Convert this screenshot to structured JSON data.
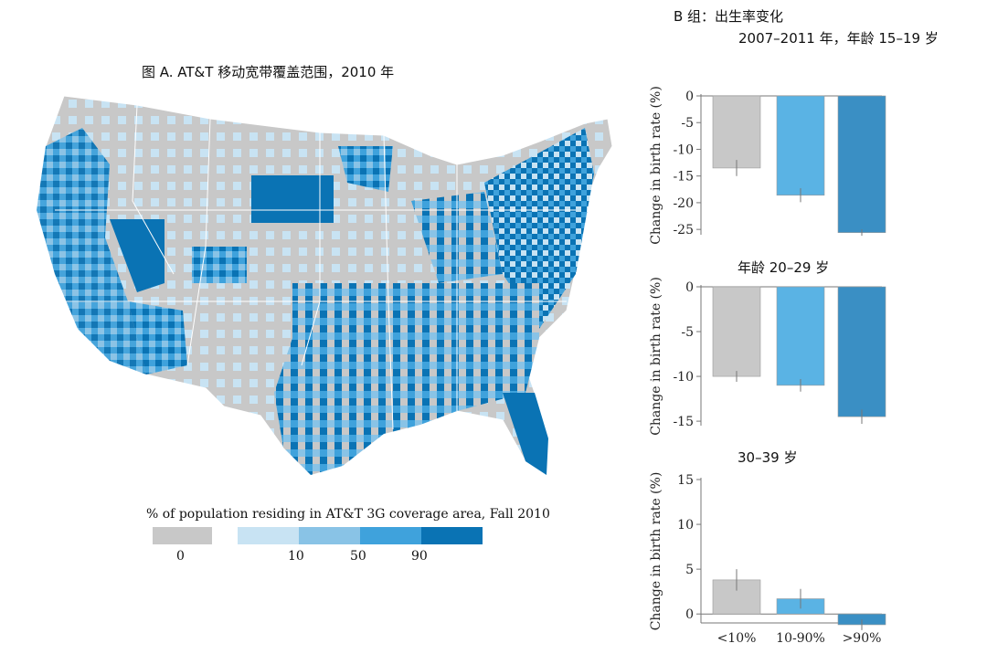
{
  "panel_a": {
    "title": "图 A. AT&T 移动宽带覆盖范围，2010 年",
    "legend_title": "% of population residing in AT&T 3G coverage area, Fall 2010",
    "legend_ticks": [
      "0",
      "10",
      "50",
      "90"
    ],
    "colors": {
      "zero": "#c8c8c8",
      "lt10": "#c8e3f3",
      "b10_50": "#89c3e6",
      "b50_90": "#3fa2dc",
      "gt90": "#0a73b4",
      "border": "#ffffff"
    }
  },
  "panel_b": {
    "title_line1": "B 组：出生率变化",
    "title_line2": "2007–2011 年，年龄 15–19 岁",
    "sub2": "年龄 20–29 岁",
    "sub3": "30–39 岁"
  },
  "chart_data": [
    {
      "type": "bar",
      "ylabel": "Change in birth rate (%)",
      "ylim": [
        -26,
        0
      ],
      "yticks": [
        0,
        -5,
        -10,
        -15,
        -20,
        -25
      ],
      "categories": [
        "<10%",
        "10-90%",
        ">90%"
      ],
      "values": [
        -13.5,
        -18.6,
        -25.6
      ],
      "errors": [
        1.5,
        1.3,
        0.6
      ],
      "colors": [
        "#c8c8c8",
        "#5ab3e4",
        "#3a8fc4"
      ]
    },
    {
      "type": "bar",
      "ylabel": "Change in birth rate (%)",
      "ylim": [
        -15.5,
        0
      ],
      "yticks": [
        0,
        -5,
        -10,
        -15
      ],
      "categories": [
        "<10%",
        "10-90%",
        ">90%"
      ],
      "values": [
        -10,
        -11,
        -14.5
      ],
      "errors": [
        0.6,
        0.7,
        0.8
      ],
      "colors": [
        "#c8c8c8",
        "#5ab3e4",
        "#3a8fc4"
      ]
    },
    {
      "type": "bar",
      "ylabel": "Change in birth rate (%)",
      "ylim": [
        -1,
        15
      ],
      "yticks": [
        15,
        10,
        5,
        0
      ],
      "categories": [
        "<10%",
        "10-90%",
        ">90%"
      ],
      "values": [
        3.8,
        1.7,
        -1.2
      ],
      "errors": [
        1.2,
        1.1,
        0.6
      ],
      "colors": [
        "#c8c8c8",
        "#5ab3e4",
        "#3a8fc4"
      ]
    }
  ]
}
